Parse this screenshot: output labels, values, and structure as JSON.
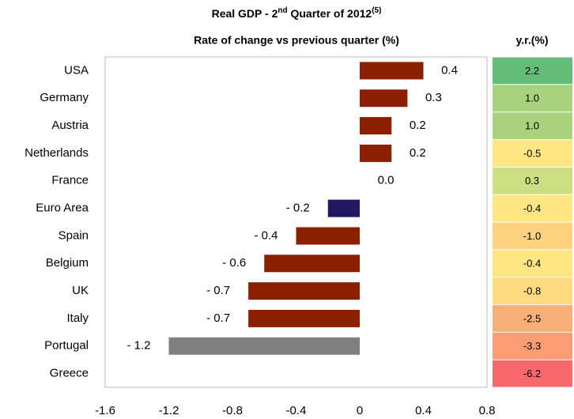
{
  "chart_data": {
    "type": "bar",
    "orientation": "horizontal",
    "title": [
      "Real GDP - 2",
      "nd",
      " Quarter of 2012",
      "(5)"
    ],
    "subtitle": "Rate of change vs previous quarter (%)",
    "categories": [
      "USA",
      "Germany",
      "Austria",
      "Netherlands",
      "France",
      "Euro Area",
      "Spain",
      "Belgium",
      "UK",
      "Italy",
      "Portugal",
      "Greece"
    ],
    "values": [
      0.4,
      0.3,
      0.2,
      0.2,
      0.0,
      -0.2,
      -0.4,
      -0.6,
      -0.7,
      -0.7,
      -1.2,
      null
    ],
    "value_labels": [
      "0.4",
      "0.3",
      "0.2",
      "0.2",
      "0.0",
      "- 0.2",
      "- 0.4",
      "- 0.6",
      "- 0.7",
      "- 0.7",
      "- 1.2",
      null
    ],
    "colors": [
      "#8b1f00",
      "#8b1f00",
      "#8b1f00",
      "#8b1f00",
      "#8b1f00",
      "#211a63",
      "#8b1f00",
      "#8b1f00",
      "#8b1f00",
      "#8b1f00",
      "#808080",
      "#8b1f00"
    ],
    "xlim": [
      -1.6,
      0.8
    ],
    "xticks": [
      -1.6,
      -1.2,
      -0.8,
      -0.4,
      0,
      0.4,
      0.8
    ],
    "grid": false,
    "yr_column": {
      "title": "y.r.(%)",
      "values": [
        2.2,
        1.0,
        1.0,
        -0.5,
        0.3,
        -0.4,
        -1.0,
        -0.4,
        -0.8,
        -2.5,
        -3.3,
        -6.2
      ],
      "labels": [
        "2.2",
        "1.0",
        "1.0",
        "-0.5",
        "0.3",
        "-0.4",
        "-1.0",
        "-0.4",
        "-0.8",
        "-2.5",
        "-3.3",
        "-6.2"
      ],
      "colors": [
        "#63be7b",
        "#a9d27f",
        "#a9d27f",
        "#fee783",
        "#cddd82",
        "#fee683",
        "#fdd17f",
        "#fee683",
        "#fedb81",
        "#fbaf78",
        "#fa9d75",
        "#f8696b"
      ]
    }
  }
}
